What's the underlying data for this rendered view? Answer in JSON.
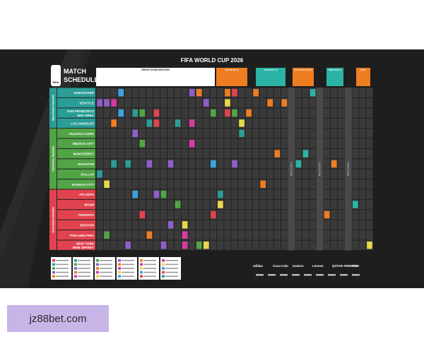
{
  "header": {
    "title": "FIFA WORLD CUP 2026",
    "logo_text": "MATCH SCHEDULE",
    "fifa_badge": "FIFA"
  },
  "regions": [
    {
      "name": "WESTERN REGION",
      "color": "#2a9d96"
    },
    {
      "name": "CENTRAL REGION",
      "color": "#52a447"
    },
    {
      "name": "EASTERN REGION",
      "color": "#e0434f"
    }
  ],
  "cities": [
    {
      "name": "VANCOUVER",
      "region": 0
    },
    {
      "name": "SEATTLE",
      "region": 0
    },
    {
      "name": "SAN FRANCISCO BAY AREA",
      "region": 0
    },
    {
      "name": "LOS ANGELES",
      "region": 0
    },
    {
      "name": "GUADALAJARA",
      "region": 1
    },
    {
      "name": "MEXICO CITY",
      "region": 1
    },
    {
      "name": "MONTERREY",
      "region": 1
    },
    {
      "name": "HOUSTON",
      "region": 1
    },
    {
      "name": "DALLAS",
      "region": 1
    },
    {
      "name": "KANSAS CITY",
      "region": 1
    },
    {
      "name": "ATLANTA",
      "region": 2
    },
    {
      "name": "MIAMI",
      "region": 2
    },
    {
      "name": "TORONTO",
      "region": 2
    },
    {
      "name": "BOSTON",
      "region": 2
    },
    {
      "name": "PHILADELPHIA",
      "region": 2
    },
    {
      "name": "NEW YORK NEW JERSEY",
      "region": 2
    }
  ],
  "stage_headers": [
    "GROUP STAGE MATCHES",
    "ROUND OF 32",
    "ROUND OF 16",
    "QUARTER-FINALS",
    "SEMI-FINALS",
    "FINAL"
  ],
  "rest_days_label": "REST DAYS",
  "sponsors": [
    "adidas",
    "Coca-Cola",
    "aramco",
    "Lenovo",
    "QATAR AIRWAYS",
    "VISA"
  ],
  "colors": {
    "poster_bg": "#1e1e1e",
    "grid_cell": "#3a3a3a",
    "group_header": "#ffffff",
    "r32": "#ef7d22",
    "r16": "#2bb3a6",
    "qf": "#ef7d22",
    "sf": "#2bb3a6",
    "final": "#ef7d22"
  },
  "watermark": "jz88bet.com"
}
